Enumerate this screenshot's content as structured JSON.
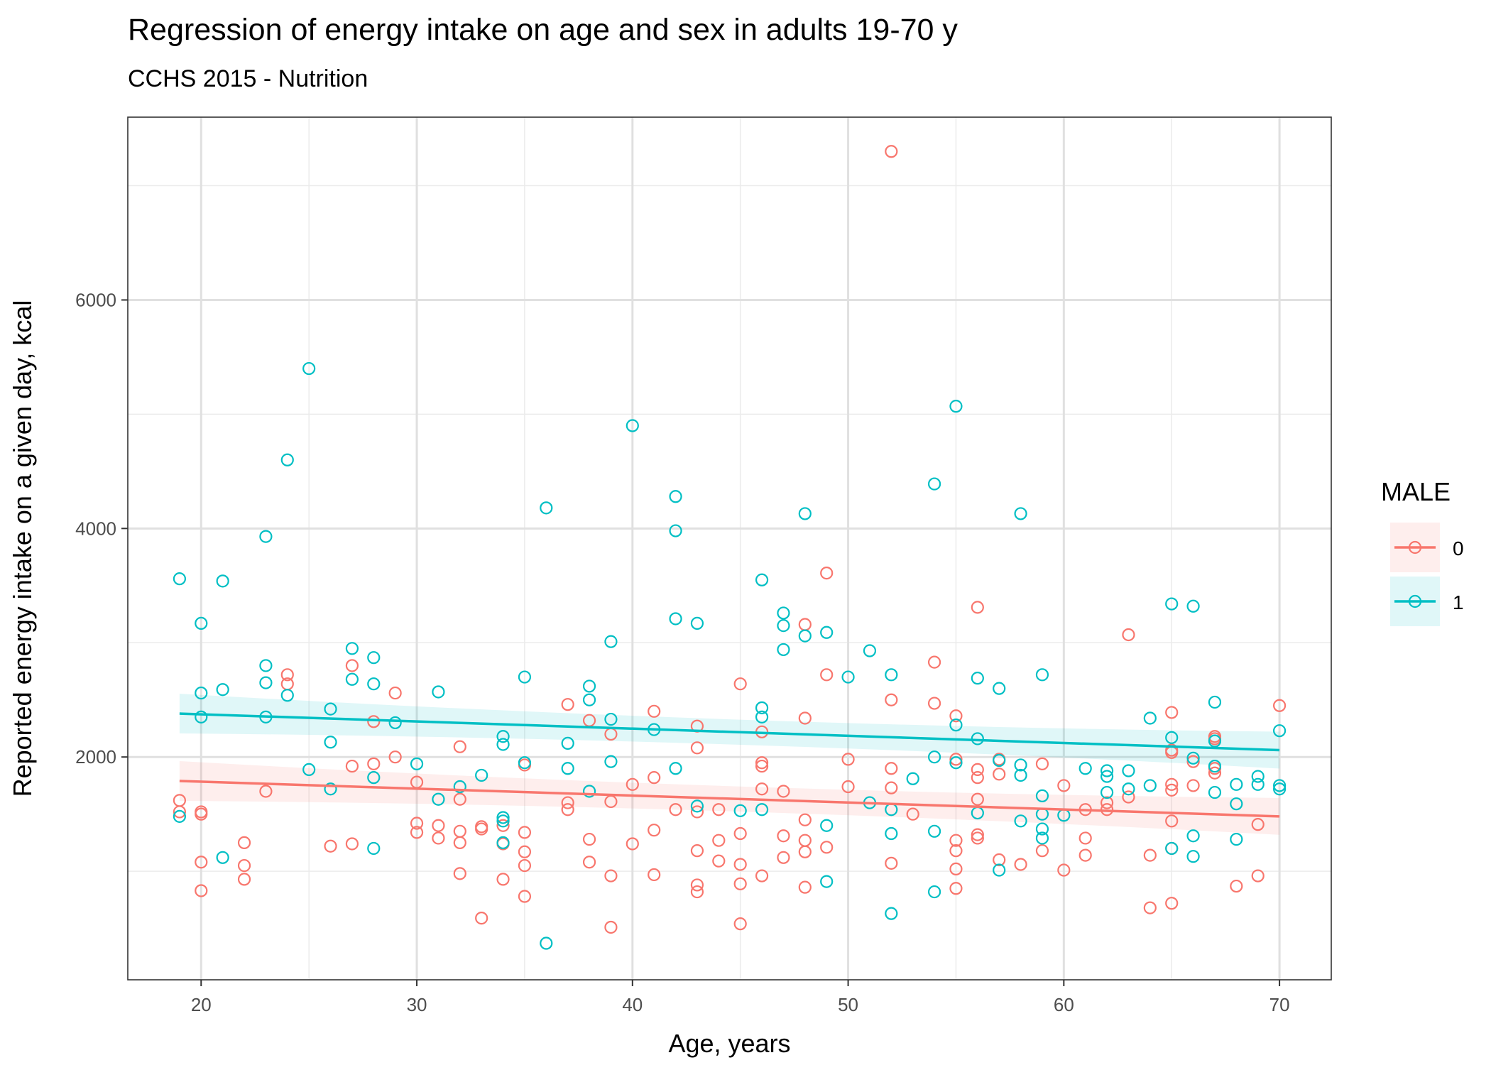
{
  "chart_data": {
    "type": "scatter",
    "title": "Regression of energy intake on age and sex in adults 19-70 y",
    "subtitle": "CCHS 2015 - Nutrition",
    "xlabel": "Age, years",
    "ylabel": "Reported energy intake on a given day, kcal",
    "xlim": [
      16.6,
      72.4
    ],
    "ylim": [
      50,
      7600
    ],
    "x_ticks": [
      20,
      30,
      40,
      50,
      60,
      70
    ],
    "y_ticks": [
      2000,
      4000,
      6000
    ],
    "grid": true,
    "legend": {
      "title": "MALE",
      "position": "right"
    },
    "series": [
      {
        "name": "0",
        "color": "#F8766D",
        "points": [
          [
            19,
            1620
          ],
          [
            19,
            1520
          ],
          [
            20,
            1500
          ],
          [
            20,
            1520
          ],
          [
            20,
            1080
          ],
          [
            20,
            830
          ],
          [
            22,
            1250
          ],
          [
            22,
            1050
          ],
          [
            22,
            930
          ],
          [
            23,
            1700
          ],
          [
            24,
            2720
          ],
          [
            24,
            2640
          ],
          [
            26,
            1220
          ],
          [
            27,
            2800
          ],
          [
            27,
            1920
          ],
          [
            27,
            1240
          ],
          [
            28,
            2310
          ],
          [
            28,
            1940
          ],
          [
            29,
            2560
          ],
          [
            29,
            2000
          ],
          [
            30,
            1780
          ],
          [
            30,
            1420
          ],
          [
            30,
            1340
          ],
          [
            31,
            1400
          ],
          [
            31,
            1290
          ],
          [
            32,
            2090
          ],
          [
            32,
            1630
          ],
          [
            32,
            1350
          ],
          [
            32,
            1250
          ],
          [
            32,
            980
          ],
          [
            33,
            1370
          ],
          [
            33,
            1390
          ],
          [
            33,
            590
          ],
          [
            34,
            1400
          ],
          [
            34,
            1240
          ],
          [
            34,
            930
          ],
          [
            35,
            1930
          ],
          [
            35,
            1340
          ],
          [
            35,
            1170
          ],
          [
            35,
            1050
          ],
          [
            35,
            780
          ],
          [
            37,
            2460
          ],
          [
            37,
            1600
          ],
          [
            37,
            1540
          ],
          [
            38,
            2320
          ],
          [
            38,
            1280
          ],
          [
            38,
            1080
          ],
          [
            39,
            2200
          ],
          [
            39,
            1610
          ],
          [
            39,
            960
          ],
          [
            39,
            510
          ],
          [
            40,
            1760
          ],
          [
            40,
            1240
          ],
          [
            41,
            2400
          ],
          [
            41,
            1820
          ],
          [
            41,
            1360
          ],
          [
            41,
            970
          ],
          [
            42,
            1540
          ],
          [
            43,
            2270
          ],
          [
            43,
            2080
          ],
          [
            43,
            1520
          ],
          [
            43,
            1180
          ],
          [
            43,
            880
          ],
          [
            43,
            820
          ],
          [
            44,
            1540
          ],
          [
            44,
            1270
          ],
          [
            44,
            1090
          ],
          [
            45,
            2640
          ],
          [
            45,
            1330
          ],
          [
            45,
            1060
          ],
          [
            45,
            890
          ],
          [
            45,
            540
          ],
          [
            46,
            2220
          ],
          [
            46,
            1950
          ],
          [
            46,
            1920
          ],
          [
            46,
            1720
          ],
          [
            46,
            960
          ],
          [
            47,
            1700
          ],
          [
            47,
            1310
          ],
          [
            47,
            1120
          ],
          [
            48,
            3160
          ],
          [
            48,
            2340
          ],
          [
            48,
            1450
          ],
          [
            48,
            1270
          ],
          [
            48,
            1170
          ],
          [
            48,
            860
          ],
          [
            49,
            3610
          ],
          [
            49,
            2720
          ],
          [
            49,
            1210
          ],
          [
            50,
            1980
          ],
          [
            50,
            1740
          ],
          [
            52,
            7300
          ],
          [
            52,
            2500
          ],
          [
            52,
            1900
          ],
          [
            52,
            1730
          ],
          [
            52,
            1070
          ],
          [
            53,
            1500
          ],
          [
            54,
            2830
          ],
          [
            54,
            2470
          ],
          [
            55,
            2360
          ],
          [
            55,
            1980
          ],
          [
            55,
            1270
          ],
          [
            55,
            1180
          ],
          [
            55,
            1020
          ],
          [
            55,
            850
          ],
          [
            56,
            3310
          ],
          [
            56,
            1890
          ],
          [
            56,
            1820
          ],
          [
            56,
            1630
          ],
          [
            56,
            1320
          ],
          [
            56,
            1290
          ],
          [
            57,
            1980
          ],
          [
            57,
            1850
          ],
          [
            57,
            1100
          ],
          [
            58,
            1060
          ],
          [
            59,
            1940
          ],
          [
            59,
            1180
          ],
          [
            60,
            1750
          ],
          [
            60,
            1010
          ],
          [
            61,
            1540
          ],
          [
            61,
            1290
          ],
          [
            61,
            1140
          ],
          [
            62,
            1600
          ],
          [
            62,
            1540
          ],
          [
            63,
            3070
          ],
          [
            63,
            1650
          ],
          [
            64,
            1140
          ],
          [
            64,
            680
          ],
          [
            65,
            2390
          ],
          [
            65,
            2060
          ],
          [
            65,
            2040
          ],
          [
            65,
            1760
          ],
          [
            65,
            1710
          ],
          [
            65,
            1440
          ],
          [
            65,
            1200
          ],
          [
            65,
            720
          ],
          [
            66,
            1960
          ],
          [
            66,
            1750
          ],
          [
            67,
            2180
          ],
          [
            67,
            2160
          ],
          [
            67,
            1900
          ],
          [
            67,
            1860
          ],
          [
            68,
            870
          ],
          [
            69,
            1410
          ],
          [
            69,
            960
          ],
          [
            70,
            2450
          ]
        ],
        "regression": {
          "x": [
            19,
            70
          ],
          "y": [
            1790,
            1480
          ]
        }
      },
      {
        "name": "1",
        "color": "#00BFC4",
        "points": [
          [
            19,
            3560
          ],
          [
            19,
            1480
          ],
          [
            20,
            3170
          ],
          [
            20,
            2560
          ],
          [
            20,
            2350
          ],
          [
            21,
            3540
          ],
          [
            21,
            2590
          ],
          [
            21,
            1120
          ],
          [
            23,
            3930
          ],
          [
            23,
            2800
          ],
          [
            23,
            2650
          ],
          [
            23,
            2350
          ],
          [
            24,
            4600
          ],
          [
            24,
            2540
          ],
          [
            25,
            5400
          ],
          [
            25,
            1890
          ],
          [
            26,
            2420
          ],
          [
            26,
            2130
          ],
          [
            26,
            1720
          ],
          [
            27,
            2950
          ],
          [
            27,
            2680
          ],
          [
            28,
            2870
          ],
          [
            28,
            2640
          ],
          [
            28,
            1820
          ],
          [
            28,
            1200
          ],
          [
            29,
            2300
          ],
          [
            30,
            1940
          ],
          [
            31,
            2570
          ],
          [
            31,
            1630
          ],
          [
            32,
            1740
          ],
          [
            33,
            1840
          ],
          [
            34,
            2180
          ],
          [
            34,
            2110
          ],
          [
            34,
            1470
          ],
          [
            34,
            1440
          ],
          [
            34,
            1250
          ],
          [
            35,
            2700
          ],
          [
            35,
            1950
          ],
          [
            36,
            4180
          ],
          [
            36,
            370
          ],
          [
            37,
            2120
          ],
          [
            37,
            1900
          ],
          [
            38,
            2620
          ],
          [
            38,
            2500
          ],
          [
            38,
            1700
          ],
          [
            39,
            3010
          ],
          [
            39,
            2330
          ],
          [
            39,
            1960
          ],
          [
            40,
            4900
          ],
          [
            41,
            2240
          ],
          [
            42,
            4280
          ],
          [
            42,
            3980
          ],
          [
            42,
            3210
          ],
          [
            42,
            1900
          ],
          [
            43,
            3170
          ],
          [
            43,
            1570
          ],
          [
            45,
            1530
          ],
          [
            46,
            3550
          ],
          [
            46,
            2430
          ],
          [
            46,
            2350
          ],
          [
            46,
            1540
          ],
          [
            47,
            3260
          ],
          [
            47,
            3150
          ],
          [
            47,
            2940
          ],
          [
            48,
            4130
          ],
          [
            48,
            3060
          ],
          [
            49,
            3090
          ],
          [
            49,
            1400
          ],
          [
            49,
            910
          ],
          [
            50,
            2700
          ],
          [
            51,
            2930
          ],
          [
            51,
            1600
          ],
          [
            52,
            2720
          ],
          [
            52,
            1540
          ],
          [
            52,
            1330
          ],
          [
            52,
            630
          ],
          [
            53,
            1810
          ],
          [
            54,
            4390
          ],
          [
            54,
            2000
          ],
          [
            54,
            1350
          ],
          [
            54,
            820
          ],
          [
            55,
            5070
          ],
          [
            55,
            2280
          ],
          [
            55,
            1950
          ],
          [
            56,
            2690
          ],
          [
            56,
            2160
          ],
          [
            56,
            1510
          ],
          [
            57,
            2600
          ],
          [
            57,
            1970
          ],
          [
            57,
            1010
          ],
          [
            58,
            4130
          ],
          [
            58,
            1930
          ],
          [
            58,
            1840
          ],
          [
            58,
            1440
          ],
          [
            59,
            2720
          ],
          [
            59,
            1660
          ],
          [
            59,
            1500
          ],
          [
            59,
            1370
          ],
          [
            59,
            1290
          ],
          [
            60,
            1490
          ],
          [
            61,
            1900
          ],
          [
            62,
            1880
          ],
          [
            62,
            1830
          ],
          [
            62,
            1690
          ],
          [
            63,
            1880
          ],
          [
            63,
            1720
          ],
          [
            64,
            2340
          ],
          [
            64,
            1750
          ],
          [
            65,
            3340
          ],
          [
            65,
            2170
          ],
          [
            65,
            1200
          ],
          [
            66,
            3320
          ],
          [
            66,
            1990
          ],
          [
            66,
            1310
          ],
          [
            66,
            1130
          ],
          [
            67,
            2480
          ],
          [
            67,
            2140
          ],
          [
            67,
            1920
          ],
          [
            67,
            1690
          ],
          [
            68,
            1760
          ],
          [
            68,
            1590
          ],
          [
            68,
            1280
          ],
          [
            69,
            1830
          ],
          [
            69,
            1760
          ],
          [
            70,
            2230
          ],
          [
            70,
            1750
          ],
          [
            70,
            1720
          ]
        ],
        "regression": {
          "x": [
            19,
            70
          ],
          "y": [
            2380,
            2060
          ]
        }
      }
    ]
  }
}
